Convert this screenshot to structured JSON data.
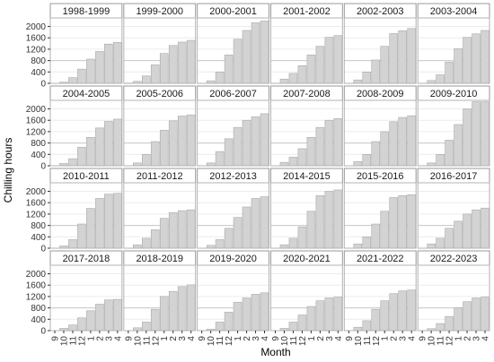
{
  "chart_data": {
    "type": "bar",
    "title": "",
    "xlabel": "Month",
    "ylabel": "Chilling hours",
    "categories": [
      "9",
      "10",
      "11",
      "12",
      "1",
      "2",
      "3",
      "4"
    ],
    "y_ticks": [
      0,
      400,
      800,
      1200,
      1600,
      2000
    ],
    "ylim": [
      0,
      2300
    ],
    "reference_line": 800,
    "grid": true,
    "facet_layout": {
      "rows": 4,
      "cols": 6
    },
    "colors": {
      "bar_fill": "#d3d3d3",
      "bar_stroke": "#aaaaaa",
      "panel_bg": "#ffffff",
      "panel_border": "#b3b3b3",
      "strip_bg": "#ffffff",
      "strip_border": "#999999",
      "grid": "#ececec",
      "reference": "#c8c8c8"
    },
    "panels": [
      {
        "season": "1998-1999",
        "values": [
          0,
          40,
          200,
          500,
          850,
          1120,
          1380,
          1440
        ]
      },
      {
        "season": "1999-2000",
        "values": [
          10,
          70,
          260,
          650,
          1050,
          1330,
          1450,
          1510
        ]
      },
      {
        "season": "2000-2001",
        "values": [
          0,
          90,
          400,
          1000,
          1550,
          1860,
          2130,
          2190
        ]
      },
      {
        "season": "2001-2002",
        "values": [
          0,
          150,
          350,
          620,
          1000,
          1300,
          1620,
          1680
        ]
      },
      {
        "season": "2002-2003",
        "values": [
          0,
          120,
          400,
          820,
          1300,
          1750,
          1850,
          1930
        ]
      },
      {
        "season": "2003-2004",
        "values": [
          0,
          100,
          300,
          750,
          1220,
          1620,
          1740,
          1860
        ]
      },
      {
        "season": "2004-2005",
        "values": [
          0,
          80,
          250,
          650,
          1000,
          1330,
          1560,
          1640
        ]
      },
      {
        "season": "2005-2006",
        "values": [
          0,
          100,
          400,
          850,
          1250,
          1580,
          1750,
          1790
        ]
      },
      {
        "season": "2006-2007",
        "values": [
          0,
          100,
          500,
          950,
          1350,
          1600,
          1720,
          1830
        ]
      },
      {
        "season": "2007-2008",
        "values": [
          0,
          120,
          300,
          600,
          1000,
          1350,
          1600,
          1660
        ]
      },
      {
        "season": "2008-2009",
        "values": [
          0,
          150,
          400,
          850,
          1200,
          1550,
          1700,
          1760
        ]
      },
      {
        "season": "2009-2010",
        "values": [
          0,
          100,
          400,
          900,
          1450,
          2000,
          2250,
          2250
        ]
      },
      {
        "season": "2010-2011",
        "values": [
          0,
          80,
          300,
          850,
          1400,
          1750,
          1900,
          1930
        ]
      },
      {
        "season": "2011-2012",
        "values": [
          0,
          120,
          350,
          650,
          1050,
          1250,
          1320,
          1350
        ]
      },
      {
        "season": "2012-2013",
        "values": [
          0,
          100,
          300,
          700,
          1080,
          1450,
          1750,
          1810
        ]
      },
      {
        "season": "2014-2015",
        "values": [
          0,
          120,
          350,
          750,
          1300,
          1850,
          2000,
          2050
        ]
      },
      {
        "season": "2015-2016",
        "values": [
          0,
          150,
          400,
          850,
          1300,
          1780,
          1850,
          1880
        ]
      },
      {
        "season": "2016-2017",
        "values": [
          0,
          150,
          350,
          700,
          950,
          1200,
          1350,
          1410
        ]
      },
      {
        "season": "2017-2018",
        "values": [
          0,
          80,
          200,
          450,
          700,
          930,
          1080,
          1100
        ]
      },
      {
        "season": "2018-2019",
        "values": [
          0,
          100,
          300,
          750,
          1200,
          1380,
          1550,
          1610
        ]
      },
      {
        "season": "2019-2020",
        "values": [
          0,
          50,
          300,
          650,
          1000,
          1150,
          1280,
          1330
        ]
      },
      {
        "season": "2020-2021",
        "values": [
          0,
          80,
          300,
          550,
          850,
          1050,
          1150,
          1180
        ]
      },
      {
        "season": "2021-2022",
        "values": [
          0,
          120,
          350,
          750,
          1050,
          1300,
          1400,
          1430
        ]
      },
      {
        "season": "2022-2023",
        "values": [
          0,
          70,
          250,
          500,
          800,
          1020,
          1150,
          1180
        ]
      }
    ]
  }
}
